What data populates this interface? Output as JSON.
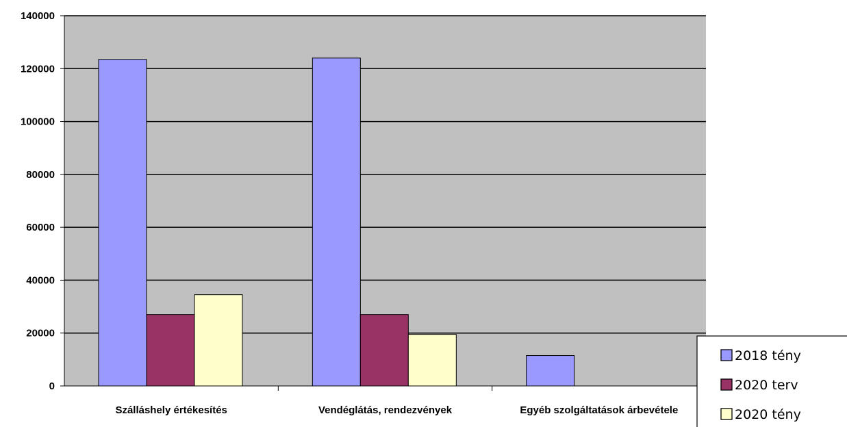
{
  "chart_data": {
    "type": "bar",
    "title": "",
    "xlabel": "",
    "ylabel": "",
    "categories": [
      "Szálláshely értékesítés",
      "Vendéglátás, rendezvények",
      "Egyéb szolgáltatások árbevétele"
    ],
    "series": [
      {
        "name": "2018 tény",
        "color": "#9999ff",
        "values": [
          123500,
          124000,
          11500
        ]
      },
      {
        "name": "2020 terv",
        "color": "#993366",
        "values": [
          27000,
          27000,
          0
        ]
      },
      {
        "name": "2020 tény",
        "color": "#ffffcc",
        "values": [
          34500,
          19500,
          0
        ]
      }
    ],
    "ylim": [
      0,
      140000
    ],
    "yticks": [
      "0",
      "20000",
      "40000",
      "60000",
      "80000",
      "100000",
      "120000",
      "140000"
    ],
    "grid": true,
    "plot_background": "#c0c0c0",
    "legend_position": "bottom-right"
  }
}
